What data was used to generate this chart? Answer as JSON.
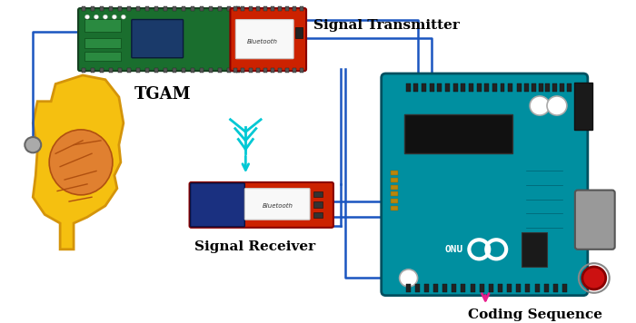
{
  "background_color": "#ffffff",
  "labels": {
    "signal_transmitter": "Signal Transmitter",
    "tgam": "TGAM",
    "signal_receiver": "Signal Receiver",
    "coding_sequence": "Coding Sequence",
    "bluetooth_top": "Bluetooth",
    "bluetooth_bottom": "Bluetooth"
  },
  "wire_color": "#1a55c0",
  "antenna_color": "#00c8d4",
  "coding_arrow_color": "#e91e8c",
  "arduino_teal": "#008fa0",
  "tgam_green": "#1a6e2e",
  "tgam_dark": "#154020",
  "bluetooth_red": "#cc2200",
  "bluetooth_dark_red": "#880000",
  "head_yellow": "#f5c010",
  "head_outline": "#d4940a",
  "brain_orange": "#e08030",
  "brain_dark": "#b05010"
}
